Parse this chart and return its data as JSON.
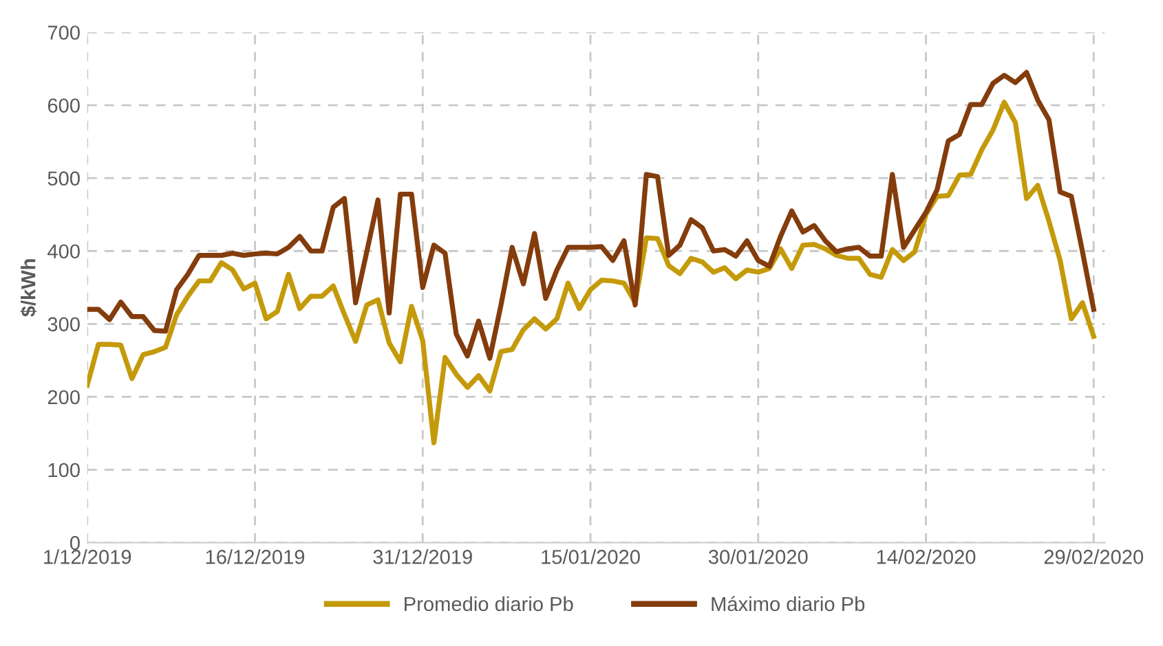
{
  "chart_data": {
    "type": "line",
    "ylabel": "$/kWh",
    "x": [
      "2019-12-01",
      "2019-12-02",
      "2019-12-03",
      "2019-12-04",
      "2019-12-05",
      "2019-12-06",
      "2019-12-07",
      "2019-12-08",
      "2019-12-09",
      "2019-12-10",
      "2019-12-11",
      "2019-12-12",
      "2019-12-13",
      "2019-12-14",
      "2019-12-15",
      "2019-12-16",
      "2019-12-17",
      "2019-12-18",
      "2019-12-19",
      "2019-12-20",
      "2019-12-21",
      "2019-12-22",
      "2019-12-23",
      "2019-12-24",
      "2019-12-25",
      "2019-12-26",
      "2019-12-27",
      "2019-12-28",
      "2019-12-29",
      "2019-12-30",
      "2019-12-31",
      "2020-01-01",
      "2020-01-02",
      "2020-01-03",
      "2020-01-04",
      "2020-01-05",
      "2020-01-06",
      "2020-01-07",
      "2020-01-08",
      "2020-01-09",
      "2020-01-10",
      "2020-01-11",
      "2020-01-12",
      "2020-01-13",
      "2020-01-14",
      "2020-01-15",
      "2020-01-16",
      "2020-01-17",
      "2020-01-18",
      "2020-01-19",
      "2020-01-20",
      "2020-01-21",
      "2020-01-22",
      "2020-01-23",
      "2020-01-24",
      "2020-01-25",
      "2020-01-26",
      "2020-01-27",
      "2020-01-28",
      "2020-01-29",
      "2020-01-30",
      "2020-01-31",
      "2020-02-01",
      "2020-02-02",
      "2020-02-03",
      "2020-02-04",
      "2020-02-05",
      "2020-02-06",
      "2020-02-07",
      "2020-02-08",
      "2020-02-09",
      "2020-02-10",
      "2020-02-11",
      "2020-02-12",
      "2020-02-13",
      "2020-02-14",
      "2020-02-15",
      "2020-02-16",
      "2020-02-17",
      "2020-02-18",
      "2020-02-19",
      "2020-02-20",
      "2020-02-21",
      "2020-02-22",
      "2020-02-23",
      "2020-02-24",
      "2020-02-25",
      "2020-02-26",
      "2020-02-27",
      "2020-02-28",
      "2020-02-29"
    ],
    "xlim": [
      "2019-12-01",
      "2020-03-01"
    ],
    "xticks": [
      {
        "value": "2019-12-01",
        "label": "1/12/2019"
      },
      {
        "value": "2019-12-16",
        "label": "16/12/2019"
      },
      {
        "value": "2019-12-31",
        "label": "31/12/2019"
      },
      {
        "value": "2020-01-15",
        "label": "15/01/2020"
      },
      {
        "value": "2020-01-30",
        "label": "30/01/2020"
      },
      {
        "value": "2020-02-14",
        "label": "14/02/2020"
      },
      {
        "value": "2020-02-29",
        "label": "29/02/2020"
      }
    ],
    "ylim": [
      0,
      700
    ],
    "yticks": [
      0,
      100,
      200,
      300,
      400,
      500,
      600,
      700
    ],
    "grid": true,
    "legend": "bottom",
    "marker": "none",
    "line_style": "solid",
    "series": [
      {
        "name": "Promedio diario Pb",
        "color": "#c49a0a",
        "values": [
          216,
          272,
          272,
          271,
          225,
          258,
          262,
          268,
          313,
          338,
          359,
          359,
          384,
          374,
          348,
          356,
          307,
          317,
          368,
          321,
          338,
          338,
          352,
          313,
          276,
          326,
          333,
          274,
          248,
          324,
          277,
          137,
          254,
          231,
          213,
          229,
          208,
          262,
          265,
          292,
          307,
          293,
          307,
          356,
          321,
          347,
          360,
          359,
          356,
          329,
          418,
          417,
          380,
          369,
          390,
          385,
          371,
          377,
          362,
          374,
          371,
          376,
          403,
          376,
          408,
          409,
          403,
          394,
          390,
          390,
          368,
          364,
          402,
          387,
          399,
          450,
          475,
          476,
          504,
          505,
          539,
          566,
          604,
          576,
          472,
          490,
          441,
          387,
          307,
          329,
          283
        ]
      },
      {
        "name": "Máximo diario Pb",
        "color": "#843c0c",
        "values": [
          320,
          320,
          306,
          330,
          310,
          310,
          291,
          290,
          347,
          368,
          394,
          394,
          394,
          397,
          394,
          396,
          397,
          396,
          405,
          420,
          400,
          400,
          460,
          472,
          329,
          399,
          470,
          315,
          478,
          478,
          350,
          408,
          397,
          286,
          256,
          304,
          253,
          326,
          405,
          355,
          424,
          335,
          374,
          405,
          405,
          405,
          406,
          387,
          414,
          326,
          505,
          502,
          394,
          408,
          443,
          432,
          400,
          402,
          393,
          414,
          387,
          379,
          420,
          455,
          426,
          435,
          414,
          399,
          403,
          405,
          393,
          393,
          505,
          405,
          429,
          453,
          484,
          551,
          560,
          601,
          601,
          630,
          641,
          631,
          645,
          607,
          580,
          481,
          475,
          399,
          320
        ]
      }
    ]
  }
}
